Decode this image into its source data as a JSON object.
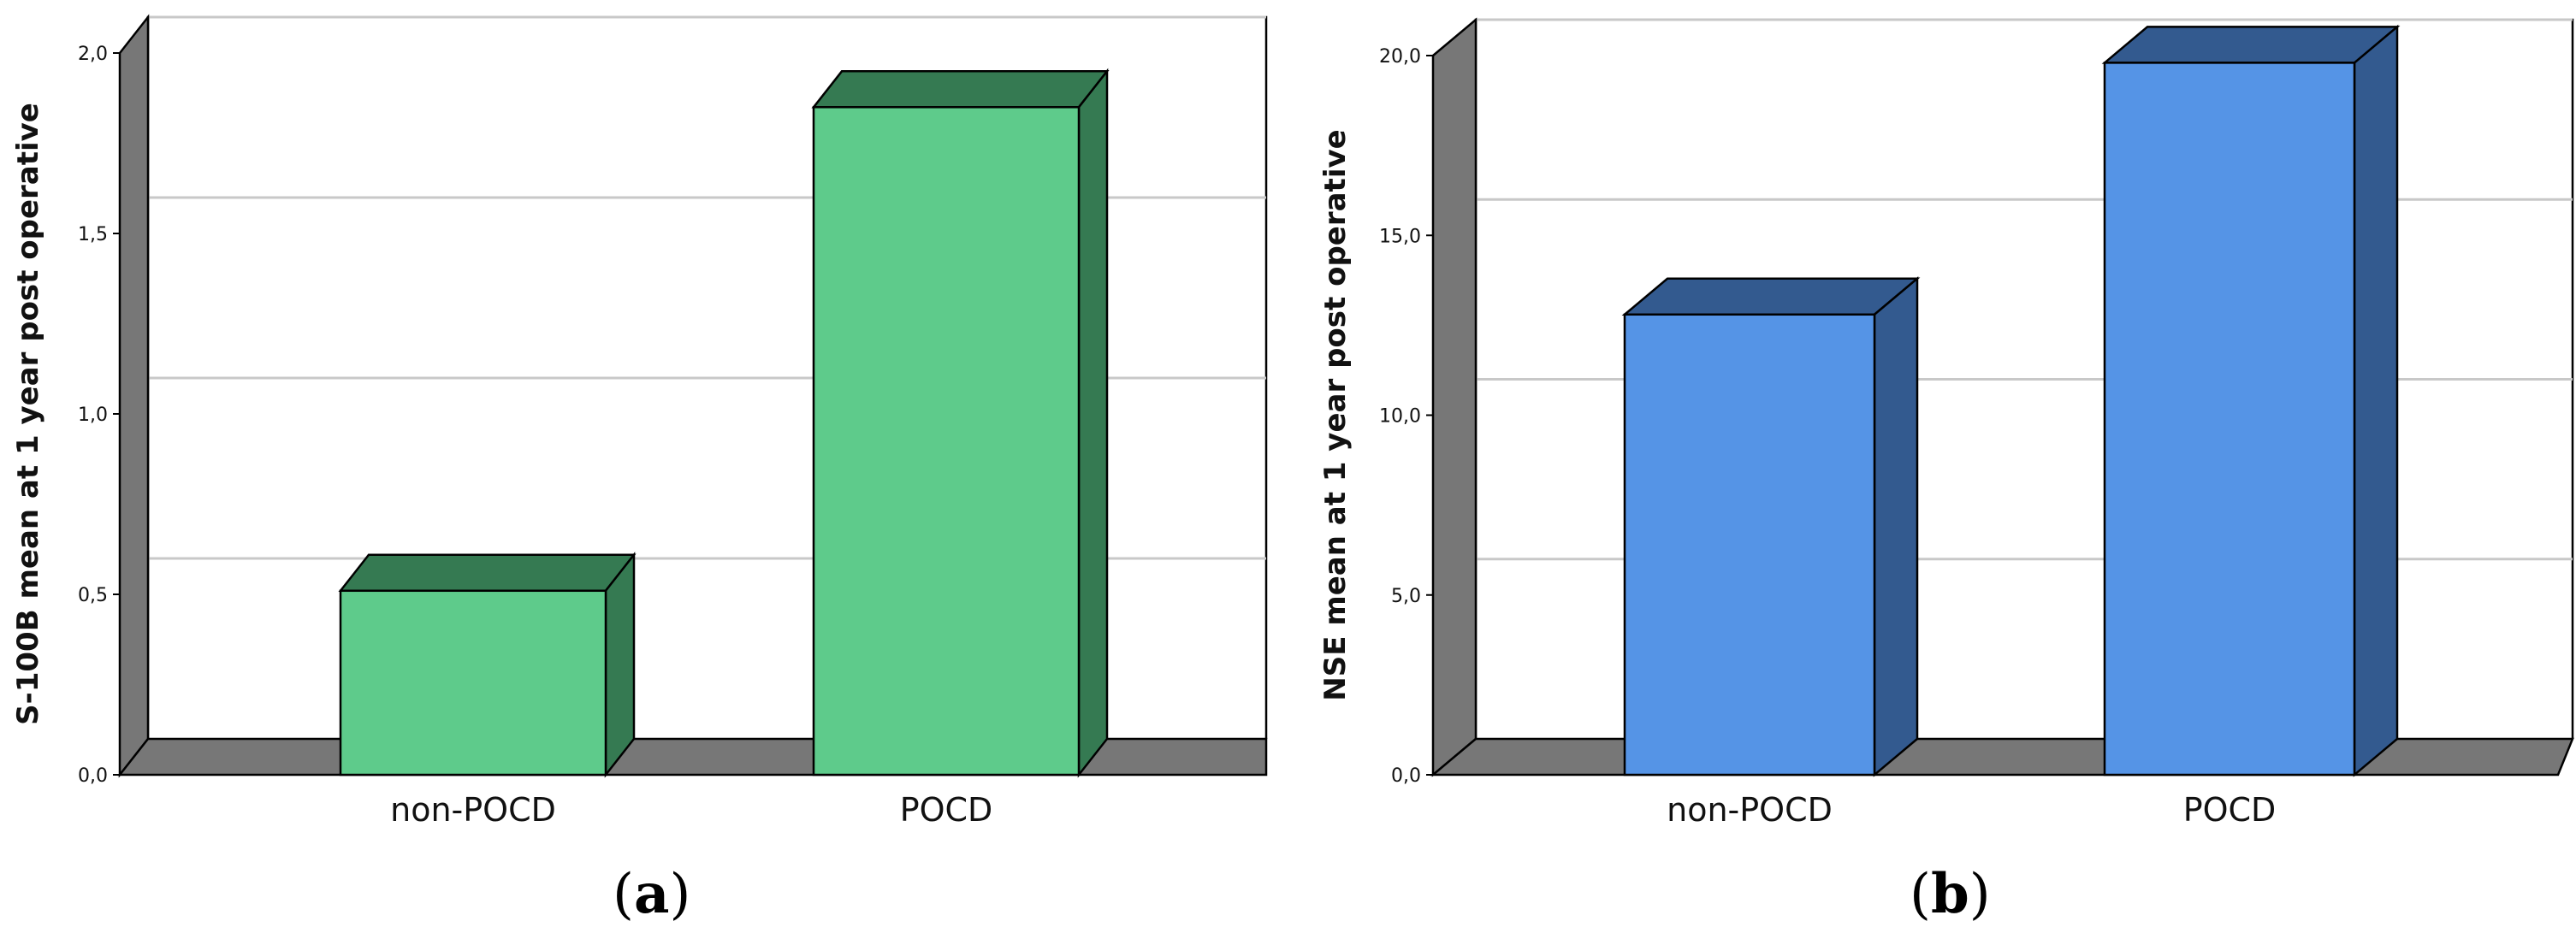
{
  "chart_data": [
    {
      "type": "bar",
      "style": "3d",
      "categories": [
        "non-POCD",
        "POCD"
      ],
      "values": [
        0.51,
        1.85
      ],
      "ylabel": "S-100B mean at 1 year post operative",
      "ylim": [
        0,
        2.0
      ],
      "yticks": [
        "0,0",
        "0,5",
        "1,0",
        "1,5",
        "2,0"
      ],
      "ytick_values": [
        0,
        0.5,
        1.0,
        1.5,
        2.0
      ],
      "grid": true,
      "colors": {
        "front": "#5ecb8b",
        "top": "#357a52",
        "side": "#357a52",
        "wall": "#777777"
      },
      "caption": {
        "open": "(",
        "letter": "a",
        "close": ")"
      }
    },
    {
      "type": "bar",
      "style": "3d",
      "categories": [
        "non-POCD",
        "POCD"
      ],
      "values": [
        12.8,
        19.8
      ],
      "ylabel": "NSE mean at 1 year post operative",
      "ylim": [
        0,
        20.0
      ],
      "yticks": [
        "0,0",
        "5,0",
        "10,0",
        "15,0",
        "20,0"
      ],
      "ytick_values": [
        0,
        5,
        10,
        15,
        20
      ],
      "grid": true,
      "colors": {
        "front": "#5594e6",
        "top": "#335a8f",
        "side": "#335a8f",
        "wall": "#777777"
      },
      "caption": {
        "open": "(",
        "letter": "b",
        "close": ")"
      }
    }
  ]
}
